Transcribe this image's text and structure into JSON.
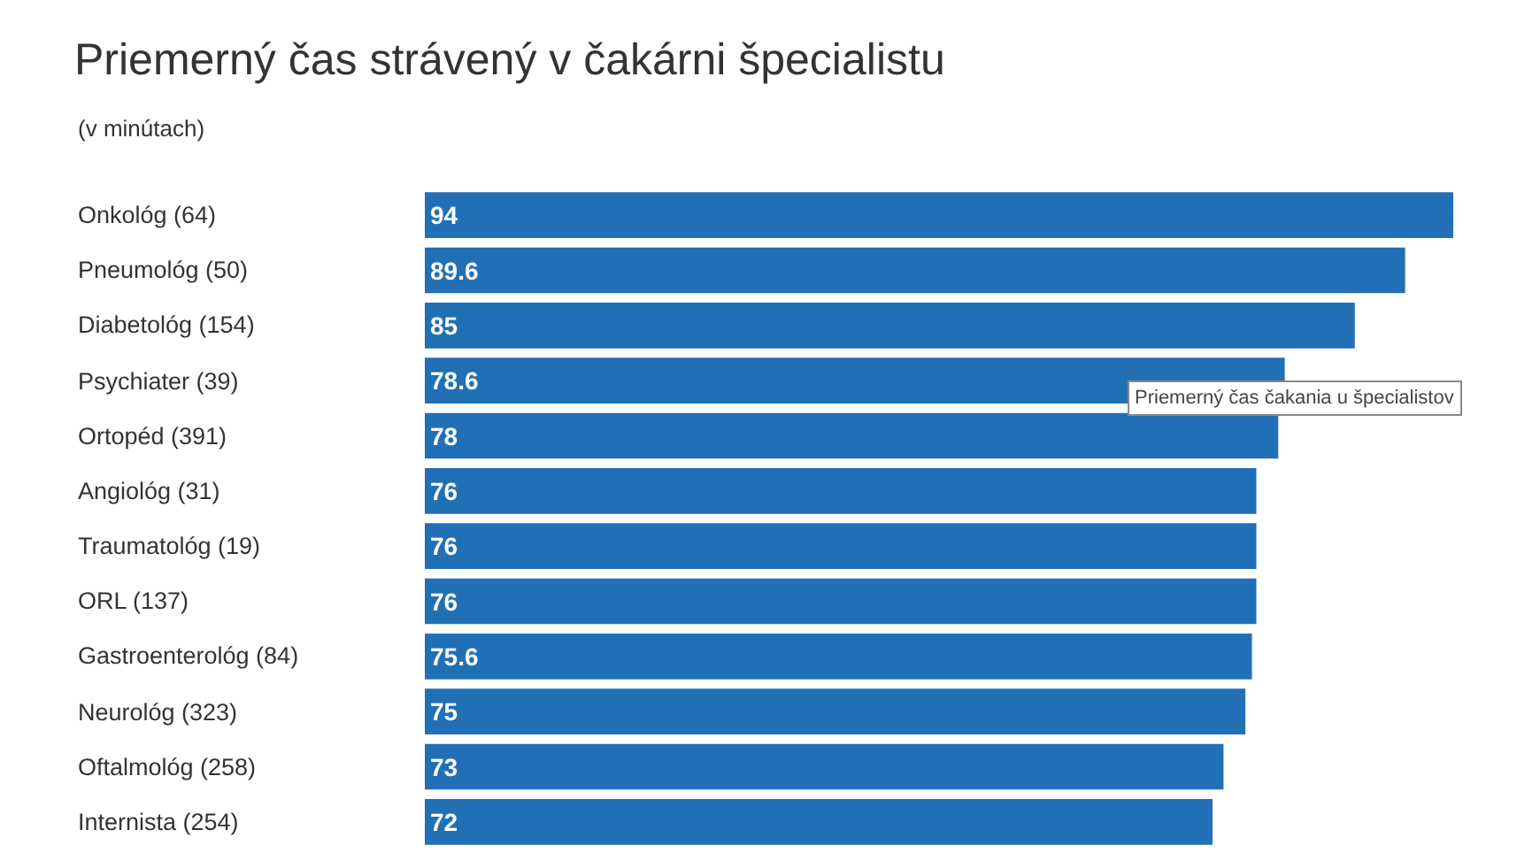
{
  "chart_data": {
    "type": "bar",
    "orientation": "horizontal",
    "title": "Priemerný čas strávený v čakárni špecialistu",
    "subtitle": "(v minútach)",
    "categories": [
      "Onkológ (64)",
      "Pneumológ (50)",
      "Diabetológ (154)",
      "Psychiater (39)",
      "Ortopéd (391)",
      "Angiológ (31)",
      "Traumatológ (19)",
      "ORL (137)",
      "Gastroenterológ (84)",
      "Neurológ (323)",
      "Oftalmológ (258)",
      "Internista (254)"
    ],
    "values": [
      94,
      89.6,
      85,
      78.6,
      78,
      76,
      76,
      76,
      75.6,
      75,
      73,
      72
    ],
    "color": "#2170b5",
    "data_labels": true,
    "xlim": [
      0,
      94
    ],
    "tick_labels": "y",
    "annotations": [
      "Priemerný čas čakania u špecialistov"
    ]
  }
}
